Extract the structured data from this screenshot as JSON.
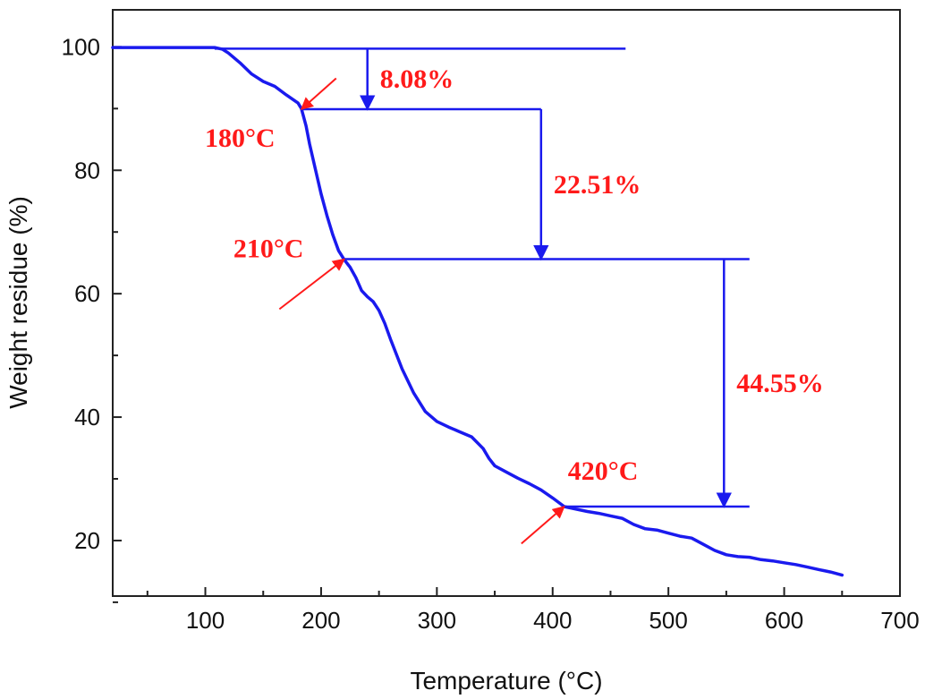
{
  "chart_data": {
    "type": "line",
    "title": "",
    "xlabel": "Temperature (°C)",
    "ylabel": "Weight residue (%)",
    "xlim": [
      20,
      700
    ],
    "ylim": [
      11,
      106
    ],
    "x_ticks": [
      100,
      200,
      300,
      400,
      500,
      600,
      700
    ],
    "y_ticks": [
      20,
      40,
      60,
      80,
      100
    ],
    "grid": false,
    "legend": "none",
    "series": [
      {
        "name": "TGA curve",
        "color": "#1a1aee",
        "x": [
          20,
          108,
          115,
          120,
          130,
          140,
          150,
          160,
          170,
          180,
          183,
          187,
          190,
          195,
          200,
          205,
          210,
          215,
          220,
          225,
          230,
          235,
          240,
          245,
          250,
          255,
          260,
          270,
          280,
          290,
          300,
          310,
          320,
          330,
          340,
          345,
          350,
          360,
          370,
          380,
          390,
          400,
          410,
          420,
          430,
          440,
          450,
          460,
          470,
          480,
          490,
          500,
          510,
          520,
          530,
          540,
          550,
          560,
          570,
          580,
          590,
          600,
          610,
          620,
          630,
          640,
          650
        ],
        "y": [
          99.9,
          99.9,
          99.6,
          99.0,
          97.4,
          95.6,
          94.4,
          93.6,
          92.2,
          90.9,
          90.0,
          87.2,
          84.3,
          80.2,
          76.2,
          72.7,
          69.6,
          67.0,
          65.5,
          64.3,
          62.6,
          60.5,
          59.5,
          58.7,
          57.3,
          55.2,
          52.6,
          47.8,
          43.9,
          40.9,
          39.3,
          38.4,
          37.6,
          36.8,
          34.9,
          33.3,
          32.1,
          31.1,
          30.1,
          29.2,
          28.2,
          26.9,
          25.5,
          25.1,
          24.7,
          24.4,
          24.0,
          23.6,
          22.6,
          21.9,
          21.7,
          21.2,
          20.7,
          20.4,
          19.4,
          18.4,
          17.7,
          17.4,
          17.3,
          16.9,
          16.7,
          16.4,
          16.1,
          15.7,
          15.3,
          14.9,
          14.4
        ]
      }
    ],
    "step_lines_color": "#1a1aee",
    "annotation_color": "#ff1a1a",
    "step_lines": [
      {
        "y": 99.7,
        "x_start": 108,
        "x_end": 463
      },
      {
        "y": 89.9,
        "x_start": 183,
        "x_end": 390
      },
      {
        "y": 65.6,
        "x_start": 220,
        "x_end": 570
      },
      {
        "y": 25.5,
        "x_start": 410,
        "x_end": 570
      }
    ],
    "drop_arrows": [
      {
        "x": 240,
        "y_from": 99.7,
        "y_to": 89.9,
        "label": "8.08%"
      },
      {
        "x": 390,
        "y_from": 89.9,
        "y_to": 65.6,
        "label": "22.51%"
      },
      {
        "x": 548,
        "y_from": 65.6,
        "y_to": 25.5,
        "label": "44.55%"
      }
    ],
    "temperature_markers": [
      {
        "label": "180°C",
        "point": [
          183,
          89.9
        ],
        "from": [
          213,
          94.9
        ]
      },
      {
        "label": "210°C",
        "point": [
          220,
          65.6
        ],
        "from": [
          164,
          57.5
        ]
      },
      {
        "label": "420°C",
        "point": [
          410,
          25.5
        ],
        "from": [
          373,
          19.5
        ]
      }
    ]
  }
}
